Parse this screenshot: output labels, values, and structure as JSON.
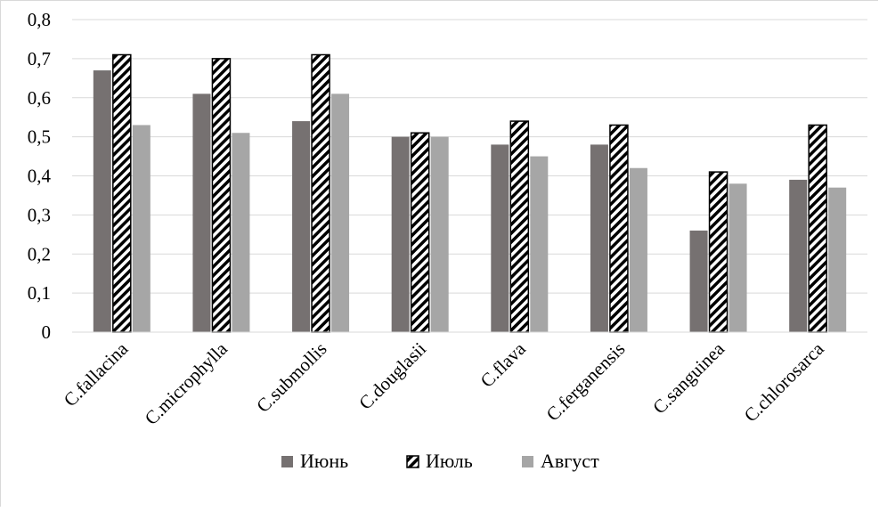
{
  "chart_data": {
    "type": "bar",
    "categories": [
      "C.fallacina",
      "C.microphylla",
      "C.submollis",
      "C.douglasii",
      "C.flava",
      "C.ferganensis",
      "C.sanguinea",
      "C.chlorosarca"
    ],
    "series": [
      {
        "name": "Июнь",
        "values": [
          0.67,
          0.61,
          0.54,
          0.5,
          0.48,
          0.48,
          0.26,
          0.39
        ],
        "color": "#767171",
        "pattern": "solid"
      },
      {
        "name": "Июль",
        "values": [
          0.71,
          0.7,
          0.71,
          0.51,
          0.54,
          0.53,
          0.41,
          0.53
        ],
        "color": "#000000",
        "pattern": "diagonal-hatch"
      },
      {
        "name": "Август",
        "values": [
          0.53,
          0.51,
          0.61,
          0.5,
          0.45,
          0.42,
          0.38,
          0.37
        ],
        "color": "#a6a6a6",
        "pattern": "solid"
      }
    ],
    "ylim": [
      0,
      0.8
    ],
    "yticks": [
      "0",
      "0,1",
      "0,2",
      "0,3",
      "0,4",
      "0,5",
      "0,6",
      "0,7",
      "0,8"
    ],
    "title": "",
    "xlabel": "",
    "ylabel": "",
    "grid": true,
    "legend_position": "bottom"
  }
}
